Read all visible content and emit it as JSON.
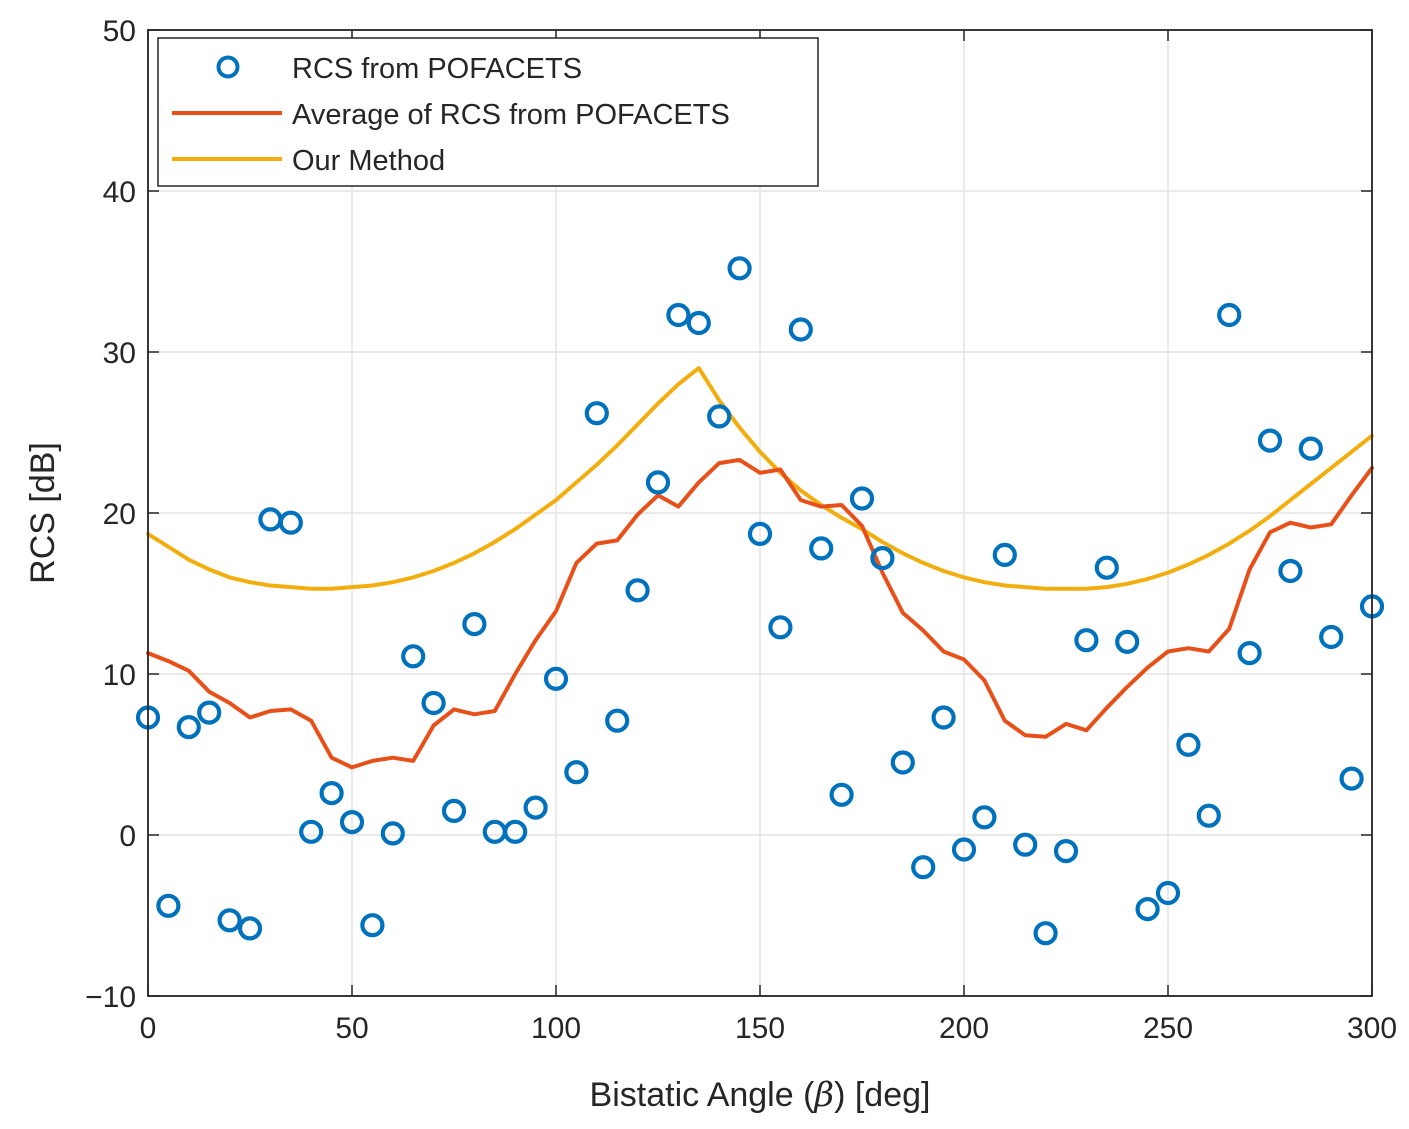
{
  "chart_data": {
    "type": "line",
    "title": "",
    "xlabel": "Bistatic Angle (β) [deg]",
    "xlabel_parts": {
      "before": "Bistatic Angle (",
      "symbol": "β",
      "after": ") [deg]"
    },
    "ylabel": "RCS [dB]",
    "xlim": [
      0,
      300
    ],
    "ylim": [
      -10,
      50
    ],
    "xticks": [
      0,
      50,
      100,
      150,
      200,
      250,
      300
    ],
    "yticks": [
      -10,
      0,
      10,
      20,
      30,
      40,
      50
    ],
    "xtick_labels": [
      "0",
      "50",
      "100",
      "150",
      "200",
      "250",
      "300"
    ],
    "ytick_labels": [
      "−10",
      "0",
      "10",
      "20",
      "30",
      "40",
      "50"
    ],
    "grid": true,
    "legend_position": "top-left",
    "series": [
      {
        "name": "RCS from POFACETS",
        "style": "markers",
        "color": "#0072BD",
        "x": [
          0,
          5,
          10,
          15,
          20,
          25,
          30,
          35,
          40,
          45,
          50,
          55,
          60,
          65,
          70,
          75,
          80,
          85,
          90,
          95,
          100,
          105,
          110,
          115,
          120,
          125,
          130,
          135,
          140,
          145,
          150,
          155,
          160,
          165,
          170,
          175,
          180,
          185,
          190,
          195,
          200,
          205,
          210,
          215,
          220,
          225,
          230,
          235,
          240,
          245,
          250,
          255,
          260,
          265,
          270,
          275,
          280,
          285,
          290,
          295,
          300
        ],
        "y": [
          7.3,
          -4.4,
          6.7,
          7.6,
          -5.3,
          -5.8,
          19.6,
          19.4,
          0.2,
          2.6,
          0.8,
          -5.6,
          0.1,
          11.1,
          8.2,
          1.5,
          13.1,
          0.2,
          0.2,
          1.7,
          9.7,
          3.9,
          26.2,
          7.1,
          15.2,
          21.9,
          32.3,
          31.8,
          26.0,
          35.2,
          18.7,
          12.9,
          31.4,
          17.8,
          2.5,
          20.9,
          17.2,
          4.5,
          -2.0,
          7.3,
          -0.9,
          1.1,
          17.4,
          -0.6,
          -6.1,
          -1.0,
          12.1,
          16.6,
          12.0,
          -4.6,
          -3.6,
          5.6,
          1.2,
          32.3,
          11.3,
          24.5,
          16.4,
          24.0,
          12.3,
          3.5,
          14.2
        ]
      },
      {
        "name": "Average of RCS from POFACETS",
        "style": "line",
        "color": "#E8501A",
        "x": [
          0,
          5,
          10,
          15,
          20,
          25,
          30,
          35,
          40,
          45,
          50,
          55,
          60,
          65,
          70,
          75,
          80,
          85,
          90,
          95,
          100,
          105,
          110,
          115,
          120,
          125,
          130,
          135,
          140,
          145,
          150,
          155,
          160,
          165,
          170,
          175,
          180,
          185,
          190,
          195,
          200,
          205,
          210,
          215,
          220,
          225,
          230,
          235,
          240,
          245,
          250,
          255,
          260,
          265,
          270,
          275,
          280,
          285,
          290,
          295,
          300
        ],
        "y": [
          11.3,
          10.8,
          10.2,
          8.9,
          8.2,
          7.3,
          7.7,
          7.8,
          7.1,
          4.8,
          4.2,
          4.6,
          4.8,
          4.6,
          6.8,
          7.8,
          7.5,
          7.7,
          10.0,
          12.1,
          13.9,
          16.9,
          18.1,
          18.3,
          19.9,
          21.1,
          20.4,
          21.9,
          23.1,
          23.3,
          22.5,
          22.7,
          20.8,
          20.4,
          20.5,
          19.2,
          16.3,
          13.8,
          12.7,
          11.4,
          10.9,
          9.6,
          7.1,
          6.2,
          6.1,
          6.9,
          6.5,
          7.9,
          9.2,
          10.4,
          11.4,
          11.6,
          11.4,
          12.8,
          16.5,
          18.8,
          19.4,
          19.1,
          19.3,
          21.1,
          22.8
        ]
      },
      {
        "name": "Our Method",
        "style": "line",
        "color": "#F2AE0F",
        "x": [
          0,
          5,
          10,
          15,
          20,
          25,
          30,
          35,
          40,
          45,
          50,
          55,
          60,
          65,
          70,
          75,
          80,
          85,
          90,
          95,
          100,
          105,
          110,
          115,
          120,
          125,
          130,
          135,
          140,
          145,
          150,
          155,
          160,
          165,
          170,
          175,
          180,
          185,
          190,
          195,
          200,
          205,
          210,
          215,
          220,
          225,
          230,
          235,
          240,
          245,
          250,
          255,
          260,
          265,
          270,
          275,
          280,
          285,
          290,
          295,
          300
        ],
        "y": [
          18.7,
          17.9,
          17.1,
          16.5,
          16.0,
          15.7,
          15.5,
          15.4,
          15.3,
          15.3,
          15.4,
          15.5,
          15.7,
          16.0,
          16.4,
          16.9,
          17.5,
          18.2,
          19.0,
          19.9,
          20.8,
          21.9,
          23.0,
          24.2,
          25.5,
          26.8,
          28.0,
          29.0,
          27.0,
          25.3,
          23.8,
          22.5,
          21.4,
          20.5,
          19.7,
          19.0,
          18.2,
          17.5,
          16.9,
          16.4,
          16.0,
          15.7,
          15.5,
          15.4,
          15.3,
          15.3,
          15.3,
          15.4,
          15.6,
          15.9,
          16.3,
          16.8,
          17.4,
          18.1,
          18.9,
          19.8,
          20.8,
          21.8,
          22.8,
          23.8,
          24.8
        ]
      }
    ]
  }
}
